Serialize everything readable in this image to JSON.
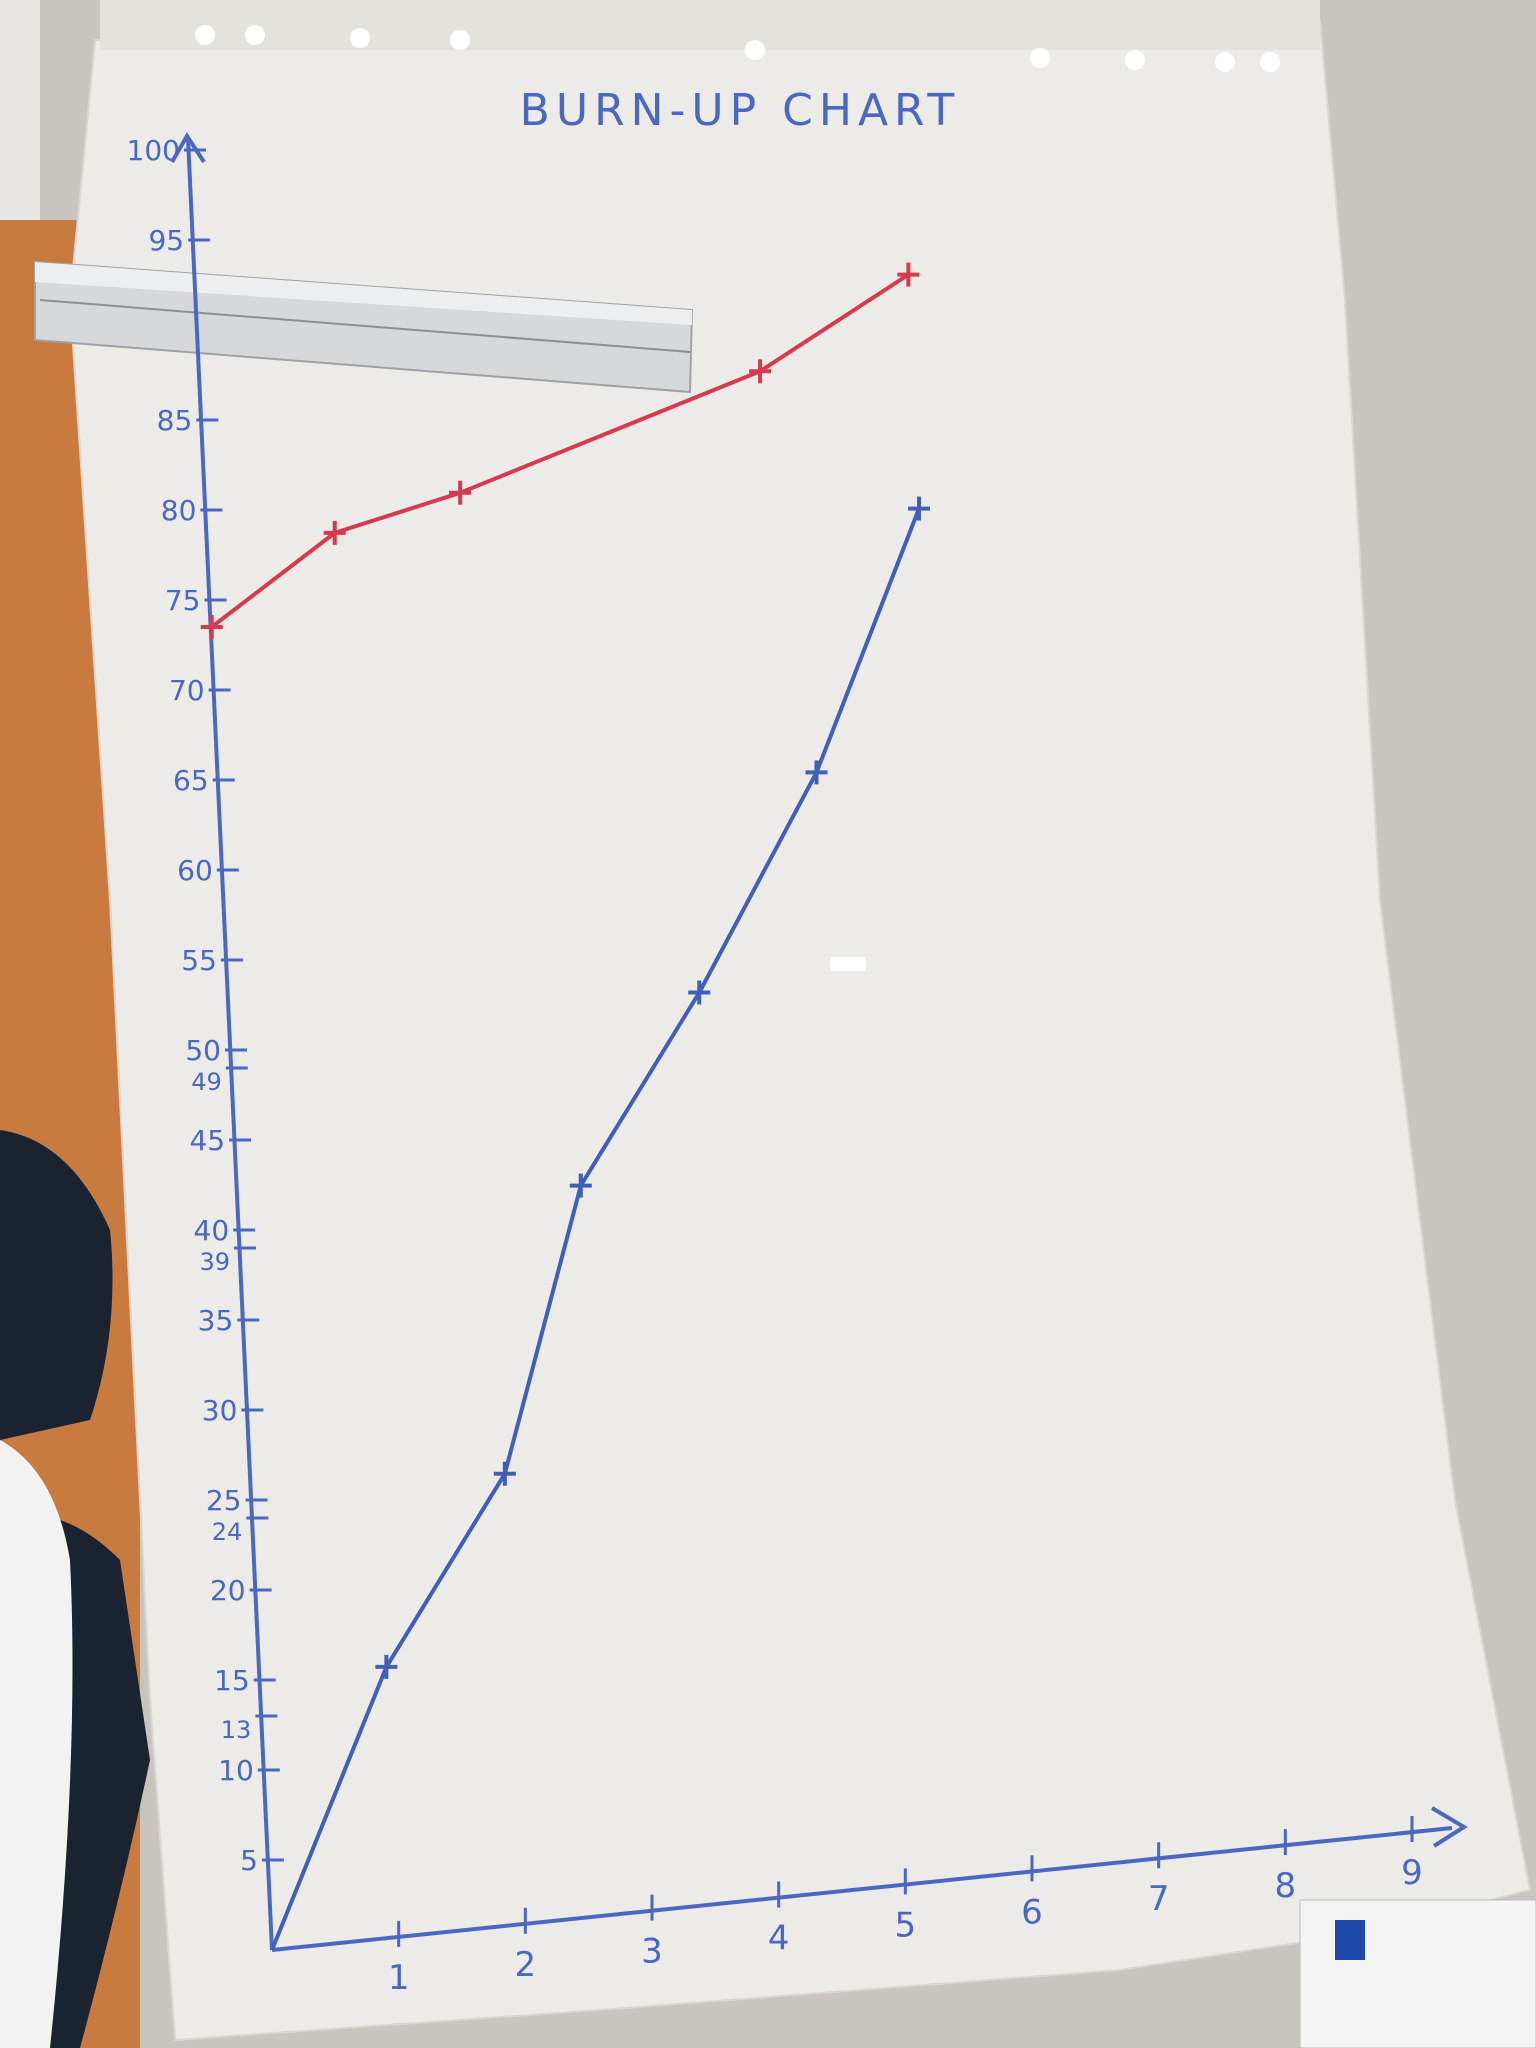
{
  "chart_data": {
    "type": "line",
    "title": "BURN-UP CHART",
    "xlabel": "",
    "ylabel": "",
    "xlim": [
      0,
      9
    ],
    "ylim": [
      0,
      100
    ],
    "grid": false,
    "x_ticks": [
      1,
      2,
      3,
      4,
      5,
      6,
      7,
      8,
      9
    ],
    "x_tick_labels": [
      "1",
      "2",
      "3",
      "4",
      "5",
      "6",
      "7",
      "8",
      "9"
    ],
    "y_ticks": [
      5,
      10,
      13,
      15,
      20,
      24,
      25,
      30,
      35,
      39,
      40,
      45,
      49,
      50,
      55,
      60,
      65,
      70,
      75,
      80,
      85,
      95,
      100
    ],
    "y_tick_labels": [
      "5",
      "10",
      "13",
      "15",
      "20",
      "24",
      "25",
      "30",
      "35",
      "39",
      "40",
      "45",
      "49",
      "50",
      "55",
      "60",
      "65",
      "70",
      "75",
      "80",
      "85",
      "95",
      "100"
    ],
    "series": [
      {
        "color": "#d63a4f",
        "x": [
          0,
          1,
          2,
          4.4,
          5.6
        ],
        "y": [
          73.5,
          78,
          79.5,
          84.5,
          89
        ]
      },
      {
        "color": "#3f5fb8",
        "x": [
          0,
          1,
          2,
          2.7,
          3.7,
          4.7,
          5.6
        ],
        "y": [
          0,
          15,
          25,
          40.5,
          50.5,
          62,
          76
        ]
      }
    ]
  },
  "colors": {
    "paper": "#ecebe7",
    "axis": "#4a67c2",
    "desk_orange": "#c97a3e",
    "floor": "#c5c2bd",
    "ruler": "#d6d8da"
  }
}
